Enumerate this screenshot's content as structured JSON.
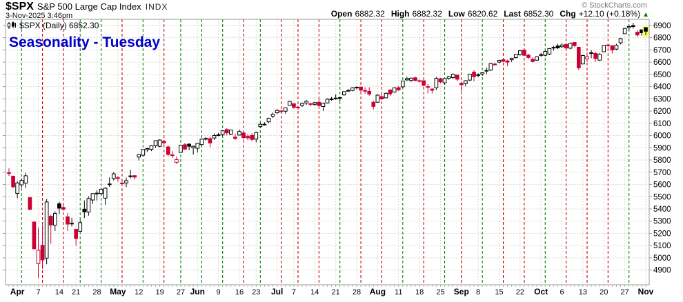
{
  "header": {
    "symbol": "$SPX",
    "name": "S&P 500 Large Cap Index",
    "exchange": "INDX",
    "datetime": "3-Nov-2025 3:46pm",
    "copyright": "© StockCharts.com"
  },
  "quote": {
    "open_label": "Open",
    "open": "6882.32",
    "high_label": "High",
    "high": "6882.32",
    "low_label": "Low",
    "low": "6820.62",
    "last_label": "Last",
    "last": "6852.30",
    "chg_label": "Chg",
    "chg": "+12.10 (+0.18%)",
    "chg_direction": "up",
    "chg_arrow": "▲"
  },
  "legend": {
    "text": "$SPX (Daily) 6852.30"
  },
  "annotation": {
    "title": "Seasonality - Tuesday",
    "color": "#0000cc"
  },
  "colors": {
    "up_outline": "#000000",
    "down": "#cc0033",
    "hollow_fill": "#ffffff",
    "tuesday_up_line": "#008000",
    "tuesday_down_line": "#cc0000",
    "grid": "#d9d9d9",
    "axis": "#999999",
    "label": "#000000",
    "last_highlight": "#ffff66"
  },
  "chart_data": {
    "type": "candlestick",
    "title": "$SPX (Daily) 6852.30",
    "symbol": "$SPX",
    "timeframe": "Daily",
    "last_value": 6852.3,
    "seasonality_day": "Tuesday",
    "legend_note": "green dashed vertical = Tuesday up close, red dashed vertical = Tuesday down close; vertical dotted gray = week start",
    "ylim": [
      4780,
      6950
    ],
    "y_ticks": [
      4900,
      5000,
      5100,
      5200,
      5300,
      5400,
      5500,
      5600,
      5700,
      5800,
      5900,
      6000,
      6100,
      6200,
      6300,
      6400,
      6500,
      6600,
      6700,
      6800,
      6900
    ],
    "x_tick_labels": [
      "Apr",
      "7",
      "14",
      "21",
      "28",
      "May",
      "12",
      "19",
      "27",
      "Jun",
      "9",
      "16",
      "23",
      "Jul",
      "7",
      "14",
      "21",
      "28",
      "Aug",
      "11",
      "18",
      "25",
      "Sep",
      "8",
      "15",
      "22",
      "Oct",
      "6",
      "13",
      "20",
      "27",
      "Nov"
    ],
    "grid": true,
    "legend_position": "top-left",
    "candles": [
      [
        "2025-03-27",
        5696,
        5732,
        5670,
        5693
      ],
      [
        "2025-03-28",
        5668,
        5671,
        5572,
        5581
      ],
      [
        "2025-03-31",
        5527,
        5627,
        5488,
        5612
      ],
      [
        "2025-04-01",
        5597,
        5650,
        5571,
        5633
      ],
      [
        "2025-04-02",
        5611,
        5695,
        5571,
        5671
      ],
      [
        "2025-04-03",
        5492,
        5499,
        5390,
        5396
      ],
      [
        "2025-04-04",
        5293,
        5293,
        5069,
        5074
      ],
      [
        "2025-04-07",
        4953,
        5246,
        4835,
        5062
      ],
      [
        "2025-04-08",
        5103,
        5267,
        4910,
        4983
      ],
      [
        "2025-04-09",
        4998,
        5481,
        4948,
        5457
      ],
      [
        "2025-04-10",
        5340,
        5353,
        5115,
        5268
      ],
      [
        "2025-04-11",
        5267,
        5381,
        5220,
        5363
      ],
      [
        "2025-04-14",
        5442,
        5459,
        5358,
        5406
      ],
      [
        "2025-04-15",
        5412,
        5450,
        5386,
        5397
      ],
      [
        "2025-04-16",
        5336,
        5367,
        5220,
        5276
      ],
      [
        "2025-04-17",
        5281,
        5328,
        5256,
        5283
      ],
      [
        "2025-04-21",
        5233,
        5239,
        5101,
        5158
      ],
      [
        "2025-04-22",
        5217,
        5309,
        5217,
        5288
      ],
      [
        "2025-04-23",
        5398,
        5469,
        5326,
        5376
      ],
      [
        "2025-04-24",
        5374,
        5502,
        5345,
        5485
      ],
      [
        "2025-04-25",
        5473,
        5528,
        5440,
        5525
      ],
      [
        "2025-04-28",
        5529,
        5553,
        5469,
        5529
      ],
      [
        "2025-04-29",
        5526,
        5572,
        5507,
        5561
      ],
      [
        "2025-04-30",
        5488,
        5577,
        5433,
        5569
      ],
      [
        "2025-05-01",
        5603,
        5658,
        5580,
        5604
      ],
      [
        "2025-05-02",
        5648,
        5700,
        5632,
        5687
      ],
      [
        "2025-05-05",
        5655,
        5669,
        5623,
        5650
      ],
      [
        "2025-05-06",
        5611,
        5649,
        5586,
        5607
      ],
      [
        "2025-05-07",
        5612,
        5656,
        5578,
        5631
      ],
      [
        "2025-05-08",
        5670,
        5720,
        5650,
        5664
      ],
      [
        "2025-05-09",
        5672,
        5677,
        5639,
        5660
      ],
      [
        "2025-05-12",
        5824,
        5845,
        5795,
        5844
      ],
      [
        "2025-05-13",
        5839,
        5887,
        5838,
        5886
      ],
      [
        "2025-05-14",
        5884,
        5900,
        5866,
        5893
      ],
      [
        "2025-05-15",
        5886,
        5921,
        5873,
        5916
      ],
      [
        "2025-05-16",
        5916,
        5959,
        5900,
        5958
      ],
      [
        "2025-05-19",
        5912,
        5968,
        5905,
        5963
      ],
      [
        "2025-05-20",
        5953,
        5963,
        5921,
        5940
      ],
      [
        "2025-05-21",
        5907,
        5920,
        5828,
        5845
      ],
      [
        "2025-05-22",
        5842,
        5873,
        5818,
        5842
      ],
      [
        "2025-05-23",
        5781,
        5829,
        5768,
        5803
      ],
      [
        "2025-05-27",
        5862,
        5924,
        5861,
        5921
      ],
      [
        "2025-05-28",
        5925,
        5940,
        5882,
        5889
      ],
      [
        "2025-05-29",
        5930,
        5935,
        5880,
        5912
      ],
      [
        "2025-05-30",
        5899,
        5917,
        5844,
        5912
      ],
      [
        "2025-06-02",
        5896,
        5938,
        5861,
        5935
      ],
      [
        "2025-06-03",
        5926,
        5975,
        5915,
        5970
      ],
      [
        "2025-06-04",
        5976,
        5987,
        5958,
        5971
      ],
      [
        "2025-06-05",
        5975,
        5990,
        5904,
        5939
      ],
      [
        "2025-06-06",
        5980,
        6016,
        5963,
        6000
      ],
      [
        "2025-06-09",
        6004,
        6021,
        5994,
        6006
      ],
      [
        "2025-06-10",
        6009,
        6043,
        5996,
        6039
      ],
      [
        "2025-06-11",
        6049,
        6059,
        6002,
        6022
      ],
      [
        "2025-06-12",
        6011,
        6047,
        6003,
        6045
      ],
      [
        "2025-06-13",
        5987,
        6015,
        5963,
        5977
      ],
      [
        "2025-06-16",
        6004,
        6050,
        6000,
        6033
      ],
      [
        "2025-06-17",
        6021,
        6026,
        5967,
        5983
      ],
      [
        "2025-06-18",
        5993,
        6012,
        5962,
        5981
      ],
      [
        "2025-06-20",
        6001,
        6018,
        5952,
        5968
      ],
      [
        "2025-06-23",
        5970,
        6031,
        5943,
        6025
      ],
      [
        "2025-06-24",
        6073,
        6101,
        6063,
        6092
      ],
      [
        "2025-06-25",
        6092,
        6108,
        6082,
        6092
      ],
      [
        "2025-06-26",
        6112,
        6146,
        6102,
        6141
      ],
      [
        "2025-06-27",
        6158,
        6188,
        6144,
        6173
      ],
      [
        "2025-06-30",
        6186,
        6215,
        6174,
        6205
      ],
      [
        "2025-07-01",
        6201,
        6211,
        6177,
        6198
      ],
      [
        "2025-07-02",
        6199,
        6228,
        6177,
        6227
      ],
      [
        "2025-07-03",
        6247,
        6284,
        6246,
        6279
      ],
      [
        "2025-07-07",
        6260,
        6262,
        6218,
        6230
      ],
      [
        "2025-07-08",
        6232,
        6242,
        6212,
        6226
      ],
      [
        "2025-07-09",
        6245,
        6269,
        6233,
        6263
      ],
      [
        "2025-07-10",
        6266,
        6290,
        6251,
        6280
      ],
      [
        "2025-07-11",
        6255,
        6269,
        6240,
        6260
      ],
      [
        "2025-07-14",
        6255,
        6277,
        6241,
        6269
      ],
      [
        "2025-07-15",
        6272,
        6302,
        6240,
        6244
      ],
      [
        "2025-07-16",
        6237,
        6269,
        6201,
        6264
      ],
      [
        "2025-07-17",
        6266,
        6304,
        6262,
        6297
      ],
      [
        "2025-07-18",
        6299,
        6315,
        6285,
        6297
      ],
      [
        "2025-07-21",
        6305,
        6336,
        6293,
        6306
      ],
      [
        "2025-07-22",
        6307,
        6316,
        6281,
        6310
      ],
      [
        "2025-07-23",
        6332,
        6360,
        6325,
        6359
      ],
      [
        "2025-07-24",
        6368,
        6381,
        6360,
        6363
      ],
      [
        "2025-07-25",
        6369,
        6395,
        6361,
        6389
      ],
      [
        "2025-07-28",
        6395,
        6401,
        6376,
        6390
      ],
      [
        "2025-07-29",
        6396,
        6400,
        6356,
        6371
      ],
      [
        "2025-07-30",
        6368,
        6394,
        6341,
        6363
      ],
      [
        "2025-07-31",
        6361,
        6395,
        6326,
        6339
      ],
      [
        "2025-08-01",
        6272,
        6284,
        6213,
        6238
      ],
      [
        "2025-08-04",
        6272,
        6337,
        6268,
        6330
      ],
      [
        "2025-08-05",
        6318,
        6340,
        6291,
        6299
      ],
      [
        "2025-08-06",
        6308,
        6352,
        6304,
        6345
      ],
      [
        "2025-08-07",
        6372,
        6380,
        6323,
        6340
      ],
      [
        "2025-08-08",
        6355,
        6395,
        6350,
        6389
      ],
      [
        "2025-08-11",
        6391,
        6405,
        6365,
        6373
      ],
      [
        "2025-08-12",
        6398,
        6446,
        6390,
        6446
      ],
      [
        "2025-08-13",
        6455,
        6481,
        6445,
        6466
      ],
      [
        "2025-08-14",
        6450,
        6474,
        6440,
        6469
      ],
      [
        "2025-08-15",
        6472,
        6481,
        6442,
        6450
      ],
      [
        "2025-08-18",
        6442,
        6458,
        6434,
        6449
      ],
      [
        "2025-08-19",
        6448,
        6450,
        6401,
        6411
      ],
      [
        "2025-08-20",
        6400,
        6420,
        6343,
        6395
      ],
      [
        "2025-08-21",
        6380,
        6386,
        6344,
        6370
      ],
      [
        "2025-08-22",
        6390,
        6478,
        6372,
        6467
      ],
      [
        "2025-08-25",
        6464,
        6471,
        6428,
        6439
      ],
      [
        "2025-08-26",
        6431,
        6466,
        6415,
        6466
      ],
      [
        "2025-08-27",
        6467,
        6488,
        6457,
        6481
      ],
      [
        "2025-08-28",
        6474,
        6508,
        6461,
        6501
      ],
      [
        "2025-08-29",
        6494,
        6497,
        6443,
        6460
      ],
      [
        "2025-09-02",
        6427,
        6440,
        6360,
        6415
      ],
      [
        "2025-09-03",
        6425,
        6453,
        6402,
        6448
      ],
      [
        "2025-09-04",
        6453,
        6503,
        6446,
        6502
      ],
      [
        "2025-09-05",
        6518,
        6533,
        6443,
        6481
      ],
      [
        "2025-09-08",
        6497,
        6509,
        6477,
        6495
      ],
      [
        "2025-09-09",
        6503,
        6519,
        6487,
        6513
      ],
      [
        "2025-09-10",
        6529,
        6555,
        6501,
        6532
      ],
      [
        "2025-09-11",
        6535,
        6591,
        6527,
        6587
      ],
      [
        "2025-09-12",
        6582,
        6596,
        6569,
        6584
      ],
      [
        "2025-09-15",
        6600,
        6619,
        6590,
        6615
      ],
      [
        "2025-09-16",
        6620,
        6626,
        6600,
        6606
      ],
      [
        "2025-09-17",
        6610,
        6620,
        6567,
        6600
      ],
      [
        "2025-09-18",
        6620,
        6636,
        6601,
        6632
      ],
      [
        "2025-09-19",
        6637,
        6664,
        6630,
        6664
      ],
      [
        "2025-09-22",
        6660,
        6699,
        6652,
        6693
      ],
      [
        "2025-09-23",
        6698,
        6700,
        6650,
        6656
      ],
      [
        "2025-09-24",
        6657,
        6669,
        6623,
        6638
      ],
      [
        "2025-09-25",
        6623,
        6640,
        6597,
        6605
      ],
      [
        "2025-09-26",
        6616,
        6649,
        6610,
        6644
      ],
      [
        "2025-09-29",
        6659,
        6674,
        6643,
        6661
      ],
      [
        "2025-09-30",
        6656,
        6693,
        6647,
        6688
      ],
      [
        "2025-10-01",
        6666,
        6715,
        6657,
        6711
      ],
      [
        "2025-10-02",
        6721,
        6731,
        6693,
        6715
      ],
      [
        "2025-10-03",
        6732,
        6750,
        6708,
        6716
      ],
      [
        "2025-10-06",
        6726,
        6755,
        6717,
        6740
      ],
      [
        "2025-10-07",
        6744,
        6757,
        6710,
        6715
      ],
      [
        "2025-10-08",
        6714,
        6760,
        6705,
        6754
      ],
      [
        "2025-10-09",
        6761,
        6764,
        6723,
        6735
      ],
      [
        "2025-10-10",
        6722,
        6726,
        6536,
        6553
      ],
      [
        "2025-10-13",
        6585,
        6660,
        6585,
        6654
      ],
      [
        "2025-10-14",
        6626,
        6679,
        6601,
        6645
      ],
      [
        "2025-10-15",
        6677,
        6697,
        6632,
        6671
      ],
      [
        "2025-10-16",
        6671,
        6683,
        6603,
        6629
      ],
      [
        "2025-10-17",
        6616,
        6676,
        6610,
        6664
      ],
      [
        "2025-10-20",
        6685,
        6739,
        6685,
        6736
      ],
      [
        "2025-10-21",
        6740,
        6750,
        6717,
        6735
      ],
      [
        "2025-10-22",
        6733,
        6741,
        6671,
        6699
      ],
      [
        "2025-10-23",
        6706,
        6750,
        6698,
        6738
      ],
      [
        "2025-10-24",
        6758,
        6798,
        6745,
        6792
      ],
      [
        "2025-10-27",
        6832,
        6877,
        6832,
        6875
      ],
      [
        "2025-10-28",
        6882,
        6899,
        6857,
        6891
      ],
      [
        "2025-10-29",
        6899,
        6920,
        6874,
        6891
      ],
      [
        "2025-10-30",
        6844,
        6862,
        6805,
        6822
      ],
      [
        "2025-10-31",
        6864,
        6867,
        6817,
        6840
      ],
      [
        "2025-11-03",
        6882.32,
        6882.32,
        6820.62,
        6852.3
      ]
    ]
  }
}
